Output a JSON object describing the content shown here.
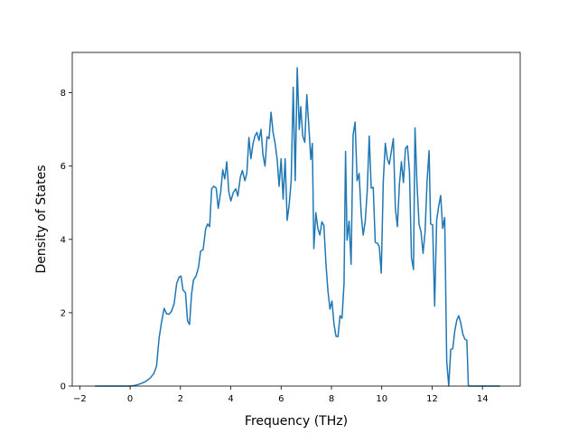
{
  "chart_data": {
    "type": "line",
    "title": "",
    "xlabel": "Frequency (THz)",
    "ylabel": "Density of States",
    "xlim": [
      -2.3,
      15.5
    ],
    "ylim": [
      0,
      9.1
    ],
    "xticks": [
      -2,
      0,
      2,
      4,
      6,
      8,
      10,
      12,
      14
    ],
    "yticks": [
      0,
      2,
      4,
      6,
      8
    ],
    "x_tick_labels": [
      "−2",
      "0",
      "2",
      "4",
      "6",
      "8",
      "10",
      "12",
      "14"
    ],
    "y_tick_labels": [
      "0",
      "2",
      "4",
      "6",
      "8"
    ],
    "grid": false,
    "legend": "none",
    "series": [
      {
        "color": "#1f77b4",
        "points": [
          [
            -1.4,
            0.0
          ],
          [
            0.0,
            0.0
          ],
          [
            0.2,
            0.02
          ],
          [
            0.4,
            0.06
          ],
          [
            0.6,
            0.12
          ],
          [
            0.8,
            0.22
          ],
          [
            0.95,
            0.35
          ],
          [
            1.05,
            0.55
          ],
          [
            1.15,
            1.3
          ],
          [
            1.25,
            1.75
          ],
          [
            1.35,
            2.12
          ],
          [
            1.45,
            1.97
          ],
          [
            1.55,
            1.96
          ],
          [
            1.65,
            2.05
          ],
          [
            1.75,
            2.25
          ],
          [
            1.85,
            2.8
          ],
          [
            1.95,
            2.98
          ],
          [
            2.02,
            3.0
          ],
          [
            2.1,
            2.62
          ],
          [
            2.2,
            2.55
          ],
          [
            2.28,
            1.78
          ],
          [
            2.36,
            1.68
          ],
          [
            2.44,
            2.5
          ],
          [
            2.52,
            2.9
          ],
          [
            2.62,
            3.0
          ],
          [
            2.72,
            3.25
          ],
          [
            2.8,
            3.68
          ],
          [
            2.9,
            3.72
          ],
          [
            3.0,
            4.28
          ],
          [
            3.08,
            4.42
          ],
          [
            3.16,
            4.35
          ],
          [
            3.24,
            5.38
          ],
          [
            3.32,
            5.45
          ],
          [
            3.42,
            5.4
          ],
          [
            3.5,
            4.85
          ],
          [
            3.6,
            5.3
          ],
          [
            3.68,
            5.9
          ],
          [
            3.76,
            5.65
          ],
          [
            3.84,
            6.12
          ],
          [
            3.92,
            5.3
          ],
          [
            4.0,
            5.05
          ],
          [
            4.1,
            5.28
          ],
          [
            4.2,
            5.38
          ],
          [
            4.28,
            5.18
          ],
          [
            4.38,
            5.7
          ],
          [
            4.46,
            5.88
          ],
          [
            4.56,
            5.6
          ],
          [
            4.64,
            5.82
          ],
          [
            4.72,
            6.78
          ],
          [
            4.8,
            6.2
          ],
          [
            4.88,
            6.6
          ],
          [
            4.96,
            6.82
          ],
          [
            5.04,
            6.92
          ],
          [
            5.12,
            6.7
          ],
          [
            5.2,
            7.0
          ],
          [
            5.28,
            6.3
          ],
          [
            5.36,
            6.0
          ],
          [
            5.44,
            6.8
          ],
          [
            5.52,
            6.75
          ],
          [
            5.6,
            7.47
          ],
          [
            5.68,
            6.92
          ],
          [
            5.76,
            6.62
          ],
          [
            5.84,
            6.2
          ],
          [
            5.92,
            5.45
          ],
          [
            6.0,
            6.2
          ],
          [
            6.08,
            5.1
          ],
          [
            6.16,
            6.2
          ],
          [
            6.24,
            4.52
          ],
          [
            6.32,
            4.95
          ],
          [
            6.4,
            5.6
          ],
          [
            6.48,
            8.15
          ],
          [
            6.56,
            5.6
          ],
          [
            6.64,
            8.68
          ],
          [
            6.72,
            7.0
          ],
          [
            6.78,
            7.62
          ],
          [
            6.86,
            6.82
          ],
          [
            6.94,
            6.65
          ],
          [
            7.02,
            7.95
          ],
          [
            7.1,
            7.1
          ],
          [
            7.18,
            6.18
          ],
          [
            7.24,
            6.62
          ],
          [
            7.3,
            3.75
          ],
          [
            7.38,
            4.73
          ],
          [
            7.46,
            4.3
          ],
          [
            7.54,
            4.12
          ],
          [
            7.62,
            4.48
          ],
          [
            7.7,
            4.38
          ],
          [
            7.78,
            3.35
          ],
          [
            7.86,
            2.6
          ],
          [
            7.94,
            2.1
          ],
          [
            8.02,
            2.32
          ],
          [
            8.1,
            1.7
          ],
          [
            8.18,
            1.36
          ],
          [
            8.26,
            1.35
          ],
          [
            8.34,
            1.92
          ],
          [
            8.42,
            1.85
          ],
          [
            8.5,
            2.8
          ],
          [
            8.56,
            6.4
          ],
          [
            8.62,
            3.98
          ],
          [
            8.7,
            4.5
          ],
          [
            8.78,
            3.32
          ],
          [
            8.86,
            6.85
          ],
          [
            8.94,
            7.2
          ],
          [
            9.02,
            5.6
          ],
          [
            9.1,
            5.8
          ],
          [
            9.18,
            4.7
          ],
          [
            9.26,
            4.12
          ],
          [
            9.34,
            4.48
          ],
          [
            9.42,
            5.3
          ],
          [
            9.5,
            6.82
          ],
          [
            9.58,
            5.4
          ],
          [
            9.66,
            5.42
          ],
          [
            9.74,
            3.92
          ],
          [
            9.82,
            3.9
          ],
          [
            9.9,
            3.8
          ],
          [
            9.98,
            3.08
          ],
          [
            10.06,
            5.6
          ],
          [
            10.14,
            6.62
          ],
          [
            10.22,
            6.2
          ],
          [
            10.3,
            6.05
          ],
          [
            10.38,
            6.4
          ],
          [
            10.46,
            6.75
          ],
          [
            10.54,
            4.85
          ],
          [
            10.62,
            4.35
          ],
          [
            10.7,
            5.5
          ],
          [
            10.78,
            6.12
          ],
          [
            10.86,
            5.55
          ],
          [
            10.94,
            6.48
          ],
          [
            11.02,
            6.55
          ],
          [
            11.1,
            5.85
          ],
          [
            11.18,
            3.5
          ],
          [
            11.26,
            3.18
          ],
          [
            11.32,
            7.04
          ],
          [
            11.4,
            5.5
          ],
          [
            11.48,
            4.42
          ],
          [
            11.56,
            4.2
          ],
          [
            11.64,
            3.62
          ],
          [
            11.72,
            4.2
          ],
          [
            11.8,
            5.6
          ],
          [
            11.88,
            6.42
          ],
          [
            11.94,
            4.42
          ],
          [
            12.02,
            4.4
          ],
          [
            12.1,
            2.18
          ],
          [
            12.18,
            4.52
          ],
          [
            12.26,
            4.9
          ],
          [
            12.34,
            5.2
          ],
          [
            12.42,
            4.3
          ],
          [
            12.5,
            4.6
          ],
          [
            12.58,
            0.68
          ],
          [
            12.66,
            0.0
          ],
          [
            12.74,
            1.0
          ],
          [
            12.82,
            1.02
          ],
          [
            12.9,
            1.5
          ],
          [
            12.98,
            1.8
          ],
          [
            13.06,
            1.92
          ],
          [
            13.14,
            1.72
          ],
          [
            13.22,
            1.42
          ],
          [
            13.3,
            1.28
          ],
          [
            13.38,
            1.25
          ],
          [
            13.44,
            0.0
          ],
          [
            14.7,
            0.0
          ]
        ]
      }
    ]
  }
}
